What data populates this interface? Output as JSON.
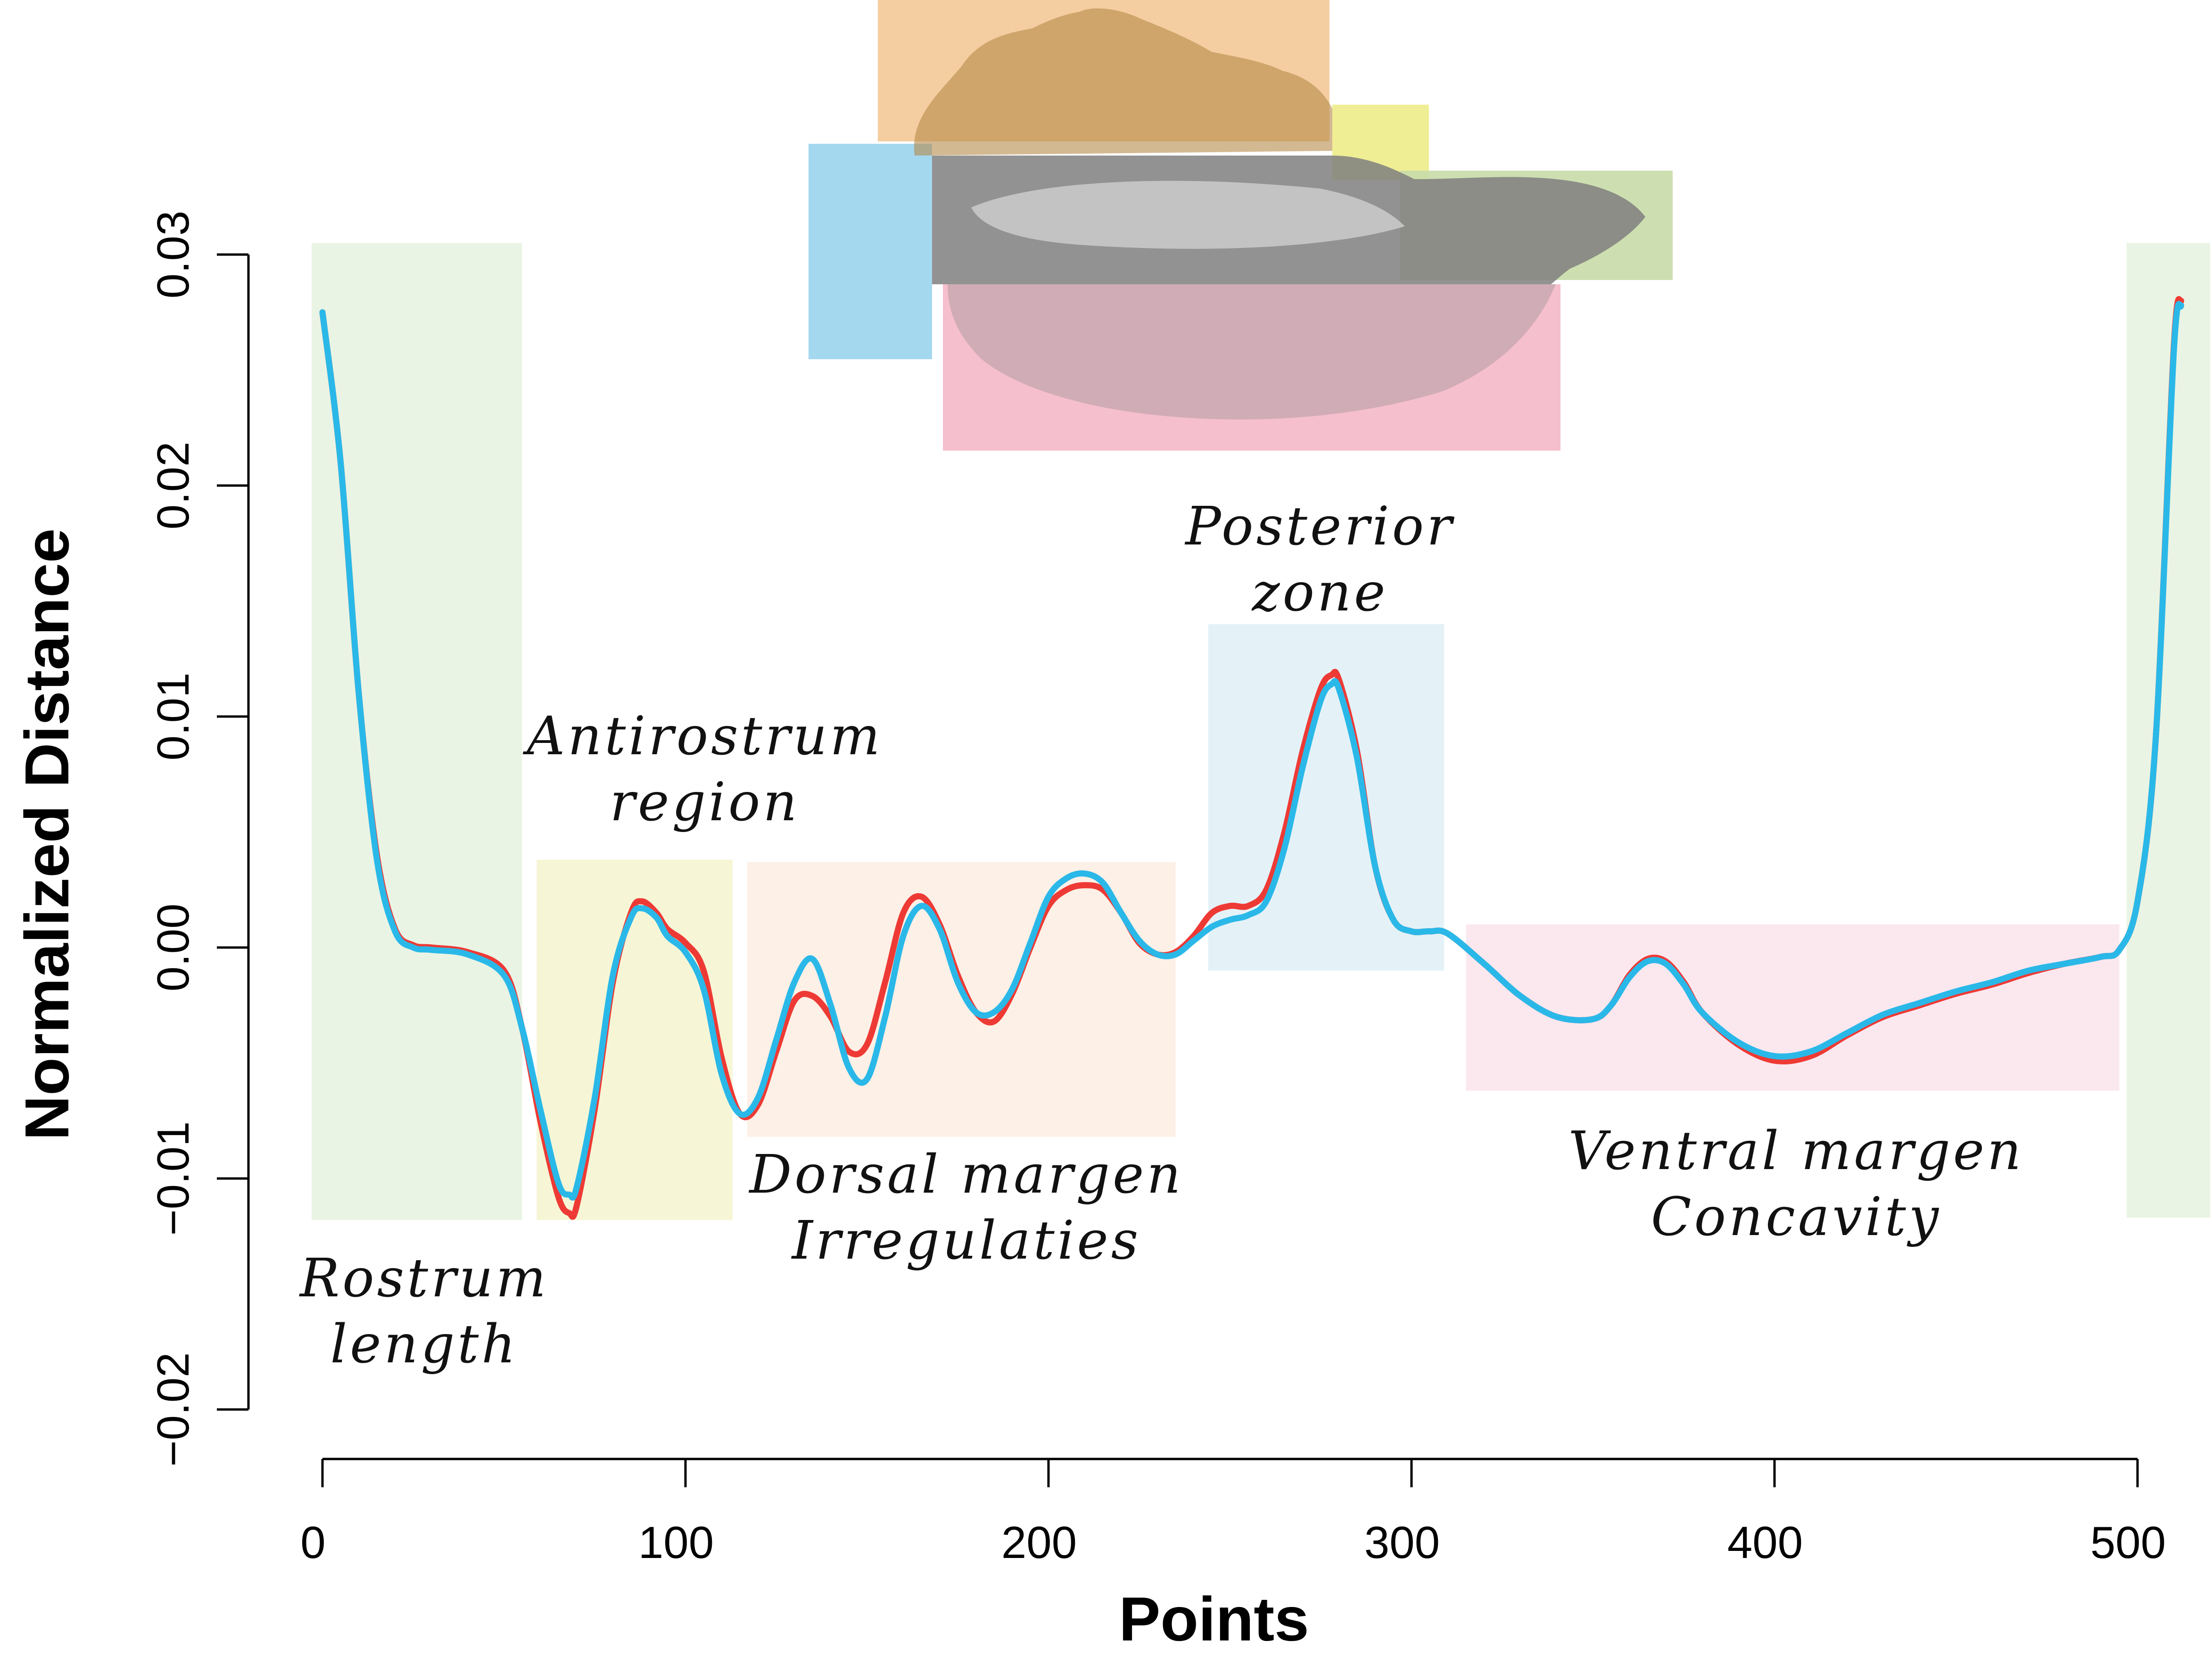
{
  "chart_data": {
    "type": "line",
    "xlabel": "Points",
    "ylabel": "Normalized Distance",
    "xlim": [
      0,
      512
    ],
    "ylim": [
      -0.02,
      0.03
    ],
    "x_ticks": [
      0,
      100,
      200,
      300,
      400,
      500
    ],
    "x_tick_labels": [
      "0",
      "100",
      "200",
      "300",
      "400",
      "500"
    ],
    "y_ticks": [
      -0.02,
      -0.01,
      0.0,
      0.01,
      0.02,
      0.03
    ],
    "y_tick_labels": [
      "−0.02",
      "−0.01",
      "0.00",
      "0.01",
      "0.02",
      "0.03"
    ],
    "grid": false,
    "series": [
      {
        "color": "#ee3a35",
        "x": [
          0,
          5,
          10,
          15,
          20,
          25,
          30,
          40,
          50,
          55,
          60,
          65,
          68,
          70,
          75,
          80,
          85,
          88,
          92,
          95,
          100,
          105,
          110,
          115,
          120,
          125,
          130,
          135,
          140,
          145,
          150,
          155,
          160,
          165,
          170,
          175,
          180,
          185,
          190,
          195,
          200,
          205,
          210,
          215,
          220,
          225,
          230,
          235,
          240,
          245,
          250,
          255,
          260,
          265,
          270,
          275,
          278,
          280,
          285,
          290,
          295,
          300,
          305,
          310,
          320,
          330,
          340,
          350,
          355,
          360,
          365,
          370,
          375,
          380,
          390,
          400,
          410,
          420,
          430,
          440,
          450,
          460,
          470,
          480,
          490,
          495,
          500,
          505,
          510,
          512
        ],
        "y": [
          0.0275,
          0.021,
          0.011,
          0.004,
          0.0008,
          0.0001,
          0.0,
          -0.0002,
          -0.001,
          -0.0035,
          -0.0075,
          -0.0108,
          -0.0115,
          -0.0112,
          -0.007,
          -0.0015,
          0.0015,
          0.002,
          0.0015,
          0.0008,
          0.0002,
          -0.001,
          -0.0048,
          -0.0072,
          -0.0068,
          -0.0045,
          -0.0023,
          -0.0021,
          -0.003,
          -0.0045,
          -0.0042,
          -0.0015,
          0.0015,
          0.0022,
          0.001,
          -0.0012,
          -0.0028,
          -0.0032,
          -0.002,
          0.0,
          0.0018,
          0.0025,
          0.0027,
          0.0025,
          0.0015,
          0.0002,
          -0.0003,
          -0.0002,
          0.0005,
          0.0015,
          0.0018,
          0.0018,
          0.0025,
          0.005,
          0.0085,
          0.0112,
          0.0118,
          0.0116,
          0.0085,
          0.0035,
          0.0012,
          0.0007,
          0.0007,
          0.0006,
          -0.0007,
          -0.0021,
          -0.003,
          -0.0031,
          -0.0025,
          -0.0012,
          -0.0005,
          -0.0006,
          -0.0015,
          -0.0028,
          -0.0042,
          -0.0049,
          -0.0047,
          -0.0038,
          -0.003,
          -0.0025,
          -0.002,
          -0.0016,
          -0.0011,
          -0.0007,
          -0.0004,
          -0.0001,
          0.002,
          0.009,
          0.026,
          0.028
        ]
      },
      {
        "color": "#2ab8e8",
        "x": [
          0,
          5,
          10,
          15,
          20,
          25,
          30,
          40,
          50,
          55,
          60,
          65,
          68,
          70,
          75,
          80,
          85,
          88,
          92,
          95,
          100,
          105,
          110,
          115,
          120,
          125,
          130,
          135,
          140,
          145,
          150,
          155,
          160,
          165,
          170,
          175,
          180,
          185,
          190,
          195,
          200,
          205,
          210,
          215,
          220,
          225,
          230,
          235,
          240,
          245,
          250,
          255,
          260,
          265,
          270,
          275,
          278,
          280,
          285,
          290,
          295,
          300,
          305,
          310,
          320,
          330,
          340,
          350,
          355,
          360,
          365,
          370,
          375,
          380,
          390,
          400,
          410,
          420,
          430,
          440,
          450,
          460,
          470,
          480,
          490,
          495,
          500,
          505,
          510,
          512
        ],
        "y": [
          0.0275,
          0.021,
          0.011,
          0.0038,
          0.0007,
          0.0,
          -0.0001,
          -0.0003,
          -0.0012,
          -0.0035,
          -0.007,
          -0.0102,
          -0.0107,
          -0.0104,
          -0.0065,
          -0.0012,
          0.0013,
          0.0017,
          0.0013,
          0.0005,
          -0.0002,
          -0.0018,
          -0.0055,
          -0.0072,
          -0.0065,
          -0.004,
          -0.0015,
          -0.0005,
          -0.0025,
          -0.0052,
          -0.0057,
          -0.003,
          0.0005,
          0.0018,
          0.0008,
          -0.0015,
          -0.0028,
          -0.0028,
          -0.0018,
          0.0002,
          0.0022,
          0.003,
          0.0032,
          0.0028,
          0.0015,
          0.0003,
          -0.0003,
          -0.0003,
          0.0003,
          0.0009,
          0.0012,
          0.0014,
          0.002,
          0.0043,
          0.0078,
          0.0107,
          0.0114,
          0.0112,
          0.0082,
          0.0035,
          0.0012,
          0.0007,
          0.0007,
          0.0006,
          -0.0007,
          -0.0021,
          -0.003,
          -0.0031,
          -0.0025,
          -0.0013,
          -0.0006,
          -0.0007,
          -0.0016,
          -0.0028,
          -0.0041,
          -0.0047,
          -0.0045,
          -0.0037,
          -0.0029,
          -0.0024,
          -0.0019,
          -0.0015,
          -0.001,
          -0.0007,
          -0.0004,
          -0.0001,
          0.002,
          0.009,
          0.0258,
          0.0278
        ]
      }
    ],
    "regions": [
      {
        "label_lines": [
          "Rostrum",
          "length"
        ],
        "color": "#eaf4e4",
        "x_range": [
          -3,
          55
        ],
        "y_range": [
          -0.0118,
          0.0305
        ]
      },
      {
        "label_lines": [
          "Antirostrum",
          "region"
        ],
        "color": "#f6f6d6",
        "x_range": [
          59,
          113
        ],
        "y_range": [
          -0.0118,
          0.0038
        ]
      },
      {
        "label_lines": [
          "Dorsal margen",
          "Irregulaties"
        ],
        "color": "#fdf0e6",
        "x_range": [
          117,
          235
        ],
        "y_range": [
          -0.0082,
          0.0037
        ]
      },
      {
        "label_lines": [
          "Posterior",
          "zone"
        ],
        "color": "#e4f2f8",
        "x_range": [
          244,
          309
        ],
        "y_range": [
          -0.001,
          0.014
        ]
      },
      {
        "label_lines": [
          "Ventral margen",
          "Concavity"
        ],
        "color": "#fbe8ef",
        "x_range": [
          315,
          495
        ],
        "y_range": [
          -0.0062,
          0.001
        ]
      },
      {
        "label_lines": [],
        "color": "#eaf4e4",
        "x_range": [
          497,
          520
        ],
        "y_range": [
          -0.0117,
          0.0305
        ]
      }
    ]
  }
}
